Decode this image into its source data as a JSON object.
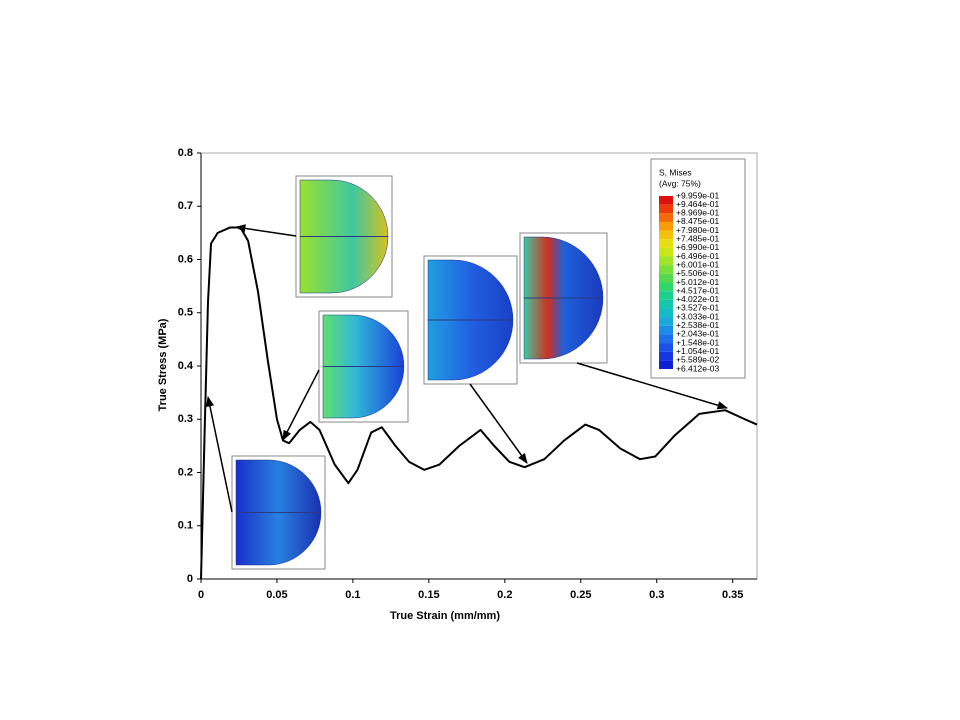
{
  "chart_data": {
    "type": "line",
    "xlabel": "True Strain (mm/mm)",
    "ylabel": "True Stress (MPa)",
    "xlim": [
      0,
      0.366
    ],
    "ylim": [
      0,
      0.8
    ],
    "xticks": [
      0,
      0.05,
      0.1,
      0.15,
      0.2,
      0.25,
      0.3,
      0.35
    ],
    "yticks": [
      0,
      0.1,
      0.2,
      0.3,
      0.4,
      0.5,
      0.6,
      0.7,
      0.8
    ],
    "series": [
      {
        "color": "#000000",
        "x": [
          0,
          0.0026,
          0.0046,
          0.0066,
          0.011,
          0.019,
          0.026,
          0.031,
          0.0375,
          0.044,
          0.05,
          0.054,
          0.058,
          0.065,
          0.072,
          0.078,
          0.088,
          0.097,
          0.103,
          0.112,
          0.119,
          0.128,
          0.137,
          0.147,
          0.157,
          0.17,
          0.184,
          0.193,
          0.203,
          0.213,
          0.226,
          0.239,
          0.253,
          0.262,
          0.276,
          0.289,
          0.299,
          0.312,
          0.328,
          0.345,
          0.358,
          0.366
        ],
        "values": [
          0,
          0.3,
          0.52,
          0.63,
          0.65,
          0.66,
          0.66,
          0.635,
          0.54,
          0.41,
          0.3,
          0.26,
          0.255,
          0.28,
          0.295,
          0.28,
          0.215,
          0.18,
          0.205,
          0.275,
          0.285,
          0.25,
          0.22,
          0.205,
          0.215,
          0.25,
          0.28,
          0.25,
          0.22,
          0.21,
          0.225,
          0.26,
          0.29,
          0.28,
          0.245,
          0.225,
          0.23,
          0.27,
          0.31,
          0.317,
          0.3,
          0.29
        ]
      }
    ],
    "contour_legend": {
      "title": "S, Mises",
      "subtitle": "(Avg: 75%)",
      "labels": [
        "+9.959e-01",
        "+9.464e-01",
        "+8.969e-01",
        "+8.475e-01",
        "+7.980e-01",
        "+7.485e-01",
        "+6.990e-01",
        "+6.496e-01",
        "+6.001e-01",
        "+5.506e-01",
        "+5.012e-01",
        "+4.517e-01",
        "+4.022e-01",
        "+3.527e-01",
        "+3.033e-01",
        "+2.538e-01",
        "+2.043e-01",
        "+1.548e-01",
        "+1.054e-01",
        "+5.589e-02",
        "+6.412e-03"
      ],
      "colors": [
        "#e01010",
        "#ee3a0a",
        "#f56a08",
        "#f99a08",
        "#f5c20a",
        "#e8de12",
        "#c8e61a",
        "#a0e628",
        "#78e038",
        "#52da4c",
        "#30d66a",
        "#1ad08c",
        "#12c8ac",
        "#14bcc8",
        "#18a8dc",
        "#1a8ee6",
        "#1a70ea",
        "#1852e8",
        "#1636e0",
        "#1020d4"
      ]
    }
  }
}
